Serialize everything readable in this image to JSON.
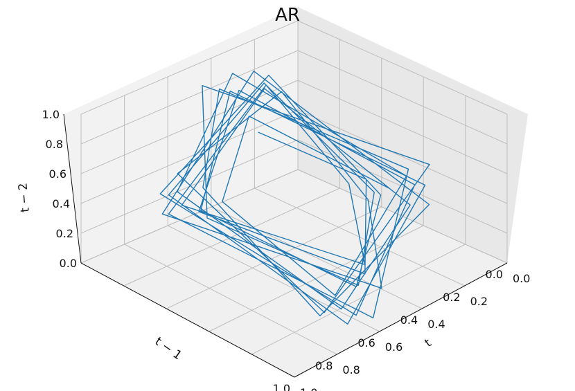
{
  "chart_data": {
    "type": "line3d",
    "title": "AR",
    "xlabel": "t",
    "ylabel": "t − 1",
    "zlabel": "t − 2",
    "xlim": [
      0.0,
      1.0
    ],
    "ylim": [
      0.0,
      1.0
    ],
    "zlim": [
      0.0,
      1.0
    ],
    "x_ticks": [
      "0.0",
      "0.2",
      "0.4",
      "0.6",
      "0.8",
      "1.0"
    ],
    "y_ticks": [
      "0.0",
      "0.2",
      "0.4",
      "0.6",
      "0.8",
      "1.0"
    ],
    "z_ticks": [
      "0.0",
      "0.2",
      "0.4",
      "0.6",
      "0.8",
      "1.0"
    ],
    "grid": true,
    "series_color": "#1f77b4",
    "x": [
      0.12,
      0.45,
      0.78,
      0.33,
      0.06,
      0.62,
      0.91,
      0.28,
      0.15,
      0.55,
      0.84,
      0.4,
      0.09,
      0.7,
      0.95,
      0.36,
      0.21,
      0.58,
      0.88,
      0.47,
      0.03,
      0.66,
      0.8,
      0.25,
      0.18,
      0.52,
      0.93,
      0.31,
      0.11,
      0.74,
      0.86,
      0.43,
      0.07,
      0.6,
      0.97,
      0.38,
      0.24,
      0.49,
      0.82,
      0.29,
      0.14,
      0.68,
      0.9,
      0.35,
      0.05,
      0.57,
      0.76,
      0.42,
      0.2,
      0.64
    ],
    "y": [
      0.3,
      0.12,
      0.45,
      0.78,
      0.33,
      0.06,
      0.62,
      0.91,
      0.28,
      0.15,
      0.55,
      0.84,
      0.4,
      0.09,
      0.7,
      0.95,
      0.36,
      0.21,
      0.58,
      0.88,
      0.47,
      0.03,
      0.66,
      0.8,
      0.25,
      0.18,
      0.52,
      0.93,
      0.31,
      0.11,
      0.74,
      0.86,
      0.43,
      0.07,
      0.6,
      0.97,
      0.38,
      0.24,
      0.49,
      0.82,
      0.29,
      0.14,
      0.68,
      0.9,
      0.35,
      0.05,
      0.57,
      0.76,
      0.42,
      0.2
    ],
    "z": [
      0.52,
      0.3,
      0.12,
      0.45,
      0.78,
      0.33,
      0.06,
      0.62,
      0.91,
      0.28,
      0.15,
      0.55,
      0.84,
      0.4,
      0.09,
      0.7,
      0.95,
      0.36,
      0.21,
      0.58,
      0.88,
      0.47,
      0.03,
      0.66,
      0.8,
      0.25,
      0.18,
      0.52,
      0.93,
      0.31,
      0.11,
      0.74,
      0.86,
      0.43,
      0.07,
      0.6,
      0.97,
      0.38,
      0.24,
      0.49,
      0.82,
      0.29,
      0.14,
      0.68,
      0.9,
      0.35,
      0.05,
      0.57,
      0.76,
      0.42
    ]
  }
}
